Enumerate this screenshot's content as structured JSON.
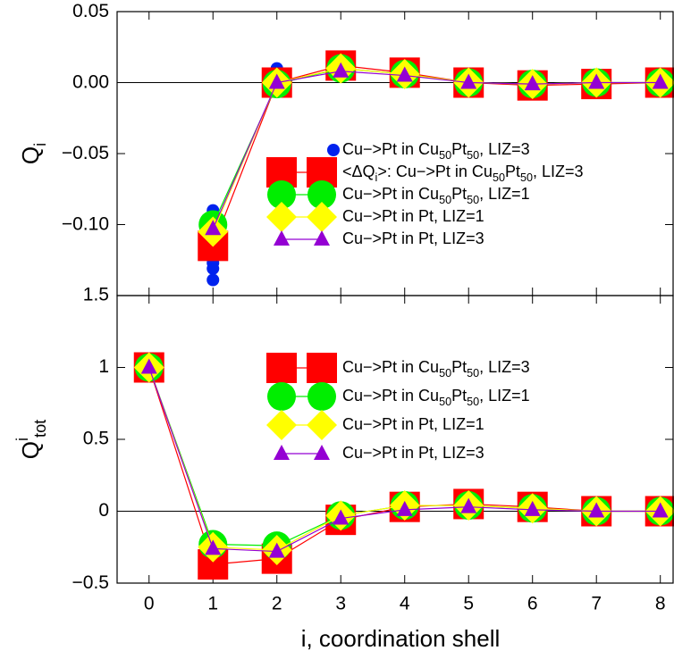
{
  "chart_data": [
    {
      "type": "line",
      "ylabel": "Q_i",
      "xlim": [
        -0.5,
        8.2
      ],
      "xticks": [
        0,
        1,
        2,
        3,
        4,
        5,
        6,
        7,
        8
      ],
      "ylim": [
        -0.15,
        0.05
      ],
      "yticks": [
        {
          "value": 0.05,
          "label": "0.05"
        },
        {
          "value": 0,
          "label": "0.00"
        },
        {
          "value": -0.05,
          "label": "−0.05"
        },
        {
          "value": -0.1,
          "label": "−0.10"
        }
      ],
      "zero_line": true,
      "legend": "right",
      "x": [
        1,
        2,
        3,
        4,
        5,
        6,
        7,
        8
      ],
      "series": [
        {
          "name": "Cu−>Pt in Cu_{50}Pt_{50}, LIZ=3",
          "color": "#0022ee",
          "marker": "dot",
          "type": "scatter",
          "x": [
            1,
            1,
            1,
            1,
            1,
            1,
            1,
            1,
            1,
            1,
            2,
            2,
            2,
            2,
            2,
            3,
            3,
            3,
            3,
            3,
            4,
            4,
            4,
            4,
            4,
            5,
            5,
            6,
            7,
            8
          ],
          "values": [
            -0.09,
            -0.095,
            -0.1,
            -0.108,
            -0.113,
            -0.118,
            -0.122,
            -0.127,
            -0.131,
            -0.139,
            0.01,
            0.007,
            0.004,
            0.001,
            -0.001,
            0.018,
            0.015,
            0.012,
            0.009,
            0.006,
            0.012,
            0.009,
            0.006,
            0.003,
            0.001,
            0.001,
            0,
            -0.001,
            0,
            0
          ]
        },
        {
          "name": "<ΔQ_i>: Cu−>Pt in Cu_{50}Pt_{50}, LIZ=3",
          "color": "#ff0000",
          "marker": "square",
          "values": [
            -0.115,
            0,
            0.012,
            0.007,
            0,
            -0.002,
            -0.001,
            0
          ]
        },
        {
          "name": "Cu−>Pt in Cu_{50}Pt_{50}, LIZ=1",
          "color": "#00ee00",
          "marker": "circle",
          "values": [
            -0.1,
            -0.001,
            0.01,
            0.006,
            0,
            -0.001,
            0,
            0
          ]
        },
        {
          "name": "Cu−>Pt in Pt, LIZ=1",
          "color": "#ffff00",
          "marker": "diamond",
          "values": [
            -0.105,
            0,
            0.01,
            0.006,
            0,
            -0.001,
            0,
            0
          ]
        },
        {
          "name": "Cu−>Pt in Pt, LIZ=3",
          "color": "#9400d3",
          "marker": "triangle",
          "values": [
            -0.103,
            0,
            0.008,
            0.005,
            0,
            -0.001,
            0,
            0
          ]
        }
      ]
    },
    {
      "type": "line",
      "ylabel": "Q^i_{tot}",
      "xlabel": "i, coordination shell",
      "xlim": [
        -0.5,
        8.2
      ],
      "xticks": [
        0,
        1,
        2,
        3,
        4,
        5,
        6,
        7,
        8
      ],
      "ylim": [
        -0.5,
        1.5
      ],
      "yticks": [
        1.5,
        1,
        0.5,
        0,
        {
          "value": -0.5,
          "label": "−0.5"
        }
      ],
      "zero_line": true,
      "legend": "right",
      "x": [
        0,
        1,
        2,
        3,
        4,
        5,
        6,
        7,
        8
      ],
      "series": [
        {
          "name": "Cu−>Pt in Cu_{50}Pt_{50}, LIZ=3",
          "color": "#ff0000",
          "marker": "square",
          "values": [
            1,
            -0.37,
            -0.33,
            -0.06,
            0.03,
            0.05,
            0.03,
            0,
            0
          ]
        },
        {
          "name": "Cu−>Pt in Cu_{50}Pt_{50}, LIZ=1",
          "color": "#00ee00",
          "marker": "circle",
          "values": [
            1,
            -0.23,
            -0.24,
            -0.03,
            0.04,
            0.04,
            0.02,
            0,
            0
          ]
        },
        {
          "name": "Cu−>Pt in Pt, LIZ=1",
          "color": "#ffff00",
          "marker": "diamond",
          "values": [
            1,
            -0.25,
            -0.27,
            -0.03,
            0.04,
            0.04,
            0.02,
            0,
            0
          ]
        },
        {
          "name": "Cu−>Pt in Pt, LIZ=3",
          "color": "#9400d3",
          "marker": "triangle",
          "values": [
            1,
            -0.26,
            -0.28,
            -0.05,
            0.01,
            0.03,
            0.01,
            0,
            0
          ]
        }
      ]
    }
  ]
}
